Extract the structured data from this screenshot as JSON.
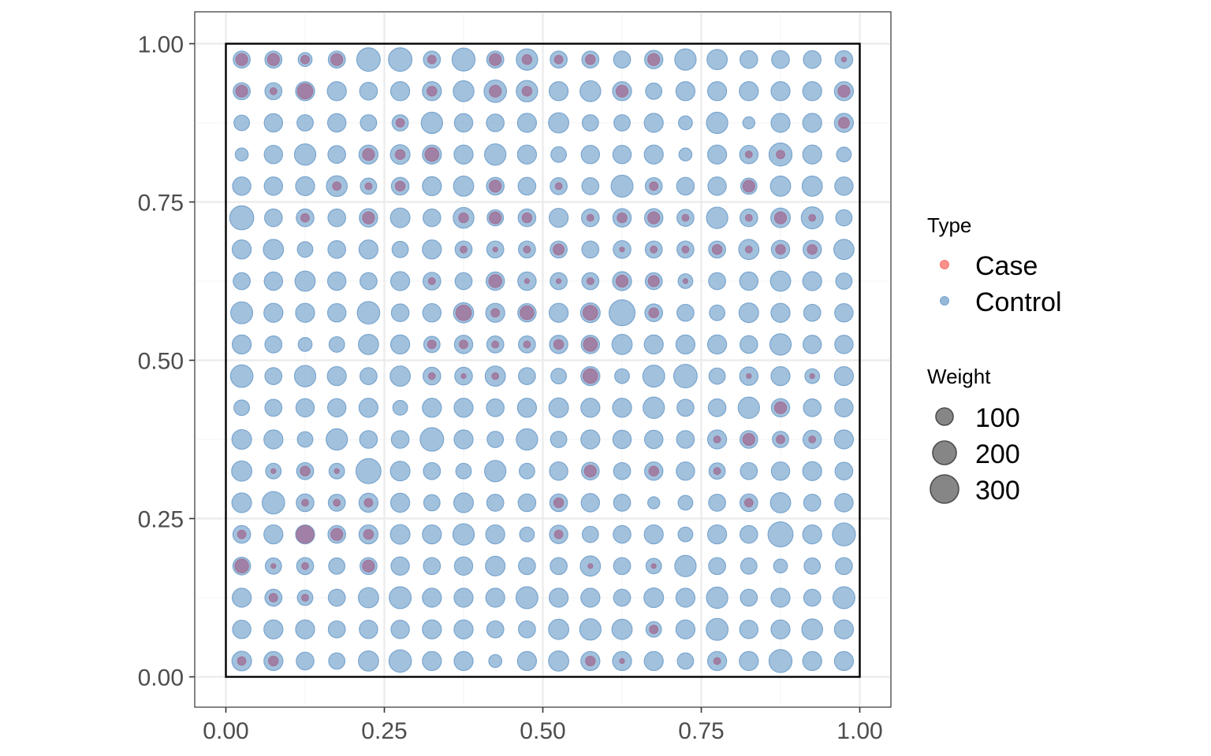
{
  "chart_data": {
    "type": "scatter",
    "title": "",
    "xlabel": "",
    "ylabel": "",
    "xlim": [
      0,
      1
    ],
    "ylim": [
      0,
      1
    ],
    "grid": true,
    "x_ticks": [
      "0.00",
      "0.25",
      "0.50",
      "0.75",
      "1.00"
    ],
    "y_ticks": [
      "0.00",
      "0.25",
      "0.50",
      "0.75",
      "1.00"
    ],
    "x_tick_values": [
      0,
      0.25,
      0.5,
      0.75,
      1
    ],
    "y_tick_values": [
      0,
      0.25,
      0.5,
      0.75,
      1
    ],
    "boundary_square": [
      0,
      0,
      1,
      1
    ],
    "grid_cell_centers": [
      0.025,
      0.075,
      0.125,
      0.175,
      0.225,
      0.275,
      0.325,
      0.375,
      0.425,
      0.475,
      0.525,
      0.575,
      0.625,
      0.675,
      0.725,
      0.775,
      0.825,
      0.875,
      0.925,
      0.975
    ],
    "control_weights_rows_top_to_bottom": [
      [
        120,
        120,
        80,
        120,
        230,
        230,
        120,
        220,
        120,
        190,
        120,
        120,
        120,
        140,
        190,
        170,
        130,
        130,
        130,
        130
      ],
      [
        120,
        120,
        150,
        150,
        130,
        150,
        150,
        180,
        210,
        190,
        150,
        180,
        150,
        110,
        150,
        150,
        150,
        150,
        150,
        150
      ],
      [
        100,
        140,
        110,
        140,
        110,
        110,
        190,
        140,
        130,
        150,
        170,
        110,
        110,
        150,
        80,
        190,
        60,
        150,
        150,
        150
      ],
      [
        70,
        140,
        190,
        130,
        150,
        160,
        150,
        150,
        190,
        150,
        100,
        140,
        140,
        150,
        70,
        150,
        140,
        220,
        150,
        90
      ],
      [
        140,
        140,
        150,
        180,
        110,
        130,
        150,
        170,
        130,
        130,
        120,
        120,
        200,
        120,
        130,
        140,
        110,
        170,
        170,
        140
      ],
      [
        240,
        130,
        130,
        130,
        140,
        160,
        130,
        180,
        110,
        130,
        150,
        130,
        140,
        140,
        120,
        190,
        130,
        160,
        200,
        110
      ],
      [
        150,
        170,
        100,
        130,
        150,
        110,
        150,
        120,
        120,
        120,
        120,
        120,
        130,
        120,
        120,
        120,
        170,
        140,
        140,
        170
      ],
      [
        120,
        140,
        170,
        140,
        120,
        150,
        130,
        120,
        140,
        140,
        120,
        120,
        150,
        120,
        90,
        120,
        140,
        170,
        150,
        110
      ],
      [
        200,
        150,
        150,
        140,
        210,
        130,
        140,
        170,
        150,
        140,
        150,
        160,
        280,
        130,
        120,
        100,
        160,
        150,
        120,
        140
      ],
      [
        150,
        120,
        80,
        100,
        170,
        150,
        110,
        140,
        120,
        120,
        140,
        140,
        170,
        150,
        150,
        150,
        130,
        190,
        140,
        140
      ],
      [
        210,
        120,
        190,
        150,
        120,
        170,
        130,
        130,
        170,
        120,
        100,
        150,
        90,
        200,
        230,
        110,
        140,
        150,
        90,
        150
      ],
      [
        100,
        120,
        140,
        140,
        150,
        90,
        150,
        150,
        130,
        150,
        160,
        150,
        150,
        190,
        120,
        130,
        190,
        140,
        130,
        140
      ],
      [
        160,
        150,
        100,
        190,
        130,
        130,
        230,
        150,
        110,
        190,
        110,
        150,
        140,
        140,
        130,
        150,
        130,
        110,
        140,
        150
      ],
      [
        170,
        100,
        120,
        100,
        260,
        160,
        120,
        100,
        190,
        100,
        140,
        130,
        120,
        140,
        140,
        110,
        120,
        140,
        150,
        130
      ],
      [
        160,
        210,
        130,
        120,
        150,
        150,
        110,
        160,
        120,
        130,
        130,
        140,
        120,
        60,
        90,
        120,
        130,
        170,
        120,
        140
      ],
      [
        130,
        150,
        150,
        130,
        150,
        160,
        150,
        190,
        150,
        90,
        140,
        110,
        130,
        150,
        90,
        150,
        130,
        260,
        150,
        220
      ],
      [
        130,
        110,
        120,
        110,
        120,
        140,
        120,
        140,
        160,
        120,
        120,
        170,
        120,
        100,
        190,
        120,
        110,
        80,
        110,
        120
      ],
      [
        150,
        120,
        100,
        120,
        170,
        200,
        150,
        150,
        150,
        200,
        150,
        150,
        120,
        160,
        150,
        190,
        120,
        150,
        120,
        200
      ],
      [
        140,
        150,
        150,
        120,
        140,
        140,
        150,
        150,
        120,
        120,
        170,
        190,
        170,
        100,
        150,
        200,
        140,
        150,
        180,
        150
      ],
      [
        160,
        150,
        130,
        110,
        170,
        210,
        150,
        150,
        70,
        150,
        170,
        150,
        150,
        150,
        110,
        150,
        150,
        220,
        150,
        150
      ]
    ],
    "case_weights_rows_top_to_bottom": [
      [
        60,
        60,
        30,
        60,
        0,
        0,
        30,
        0,
        60,
        40,
        30,
        40,
        0,
        60,
        0,
        0,
        0,
        0,
        0,
        10
      ],
      [
        60,
        20,
        100,
        0,
        0,
        0,
        40,
        0,
        60,
        40,
        0,
        0,
        60,
        0,
        0,
        0,
        0,
        0,
        0,
        60
      ],
      [
        0,
        0,
        0,
        0,
        0,
        30,
        0,
        0,
        0,
        0,
        0,
        0,
        0,
        0,
        0,
        0,
        0,
        0,
        0,
        50
      ],
      [
        0,
        0,
        0,
        0,
        60,
        40,
        80,
        0,
        0,
        0,
        0,
        0,
        0,
        0,
        0,
        0,
        20,
        30,
        0,
        0
      ],
      [
        0,
        0,
        0,
        30,
        20,
        40,
        0,
        0,
        60,
        0,
        20,
        0,
        0,
        30,
        0,
        0,
        60,
        0,
        0,
        0
      ],
      [
        0,
        0,
        30,
        0,
        60,
        0,
        0,
        40,
        60,
        40,
        0,
        20,
        40,
        60,
        20,
        0,
        20,
        60,
        20,
        0
      ],
      [
        0,
        0,
        0,
        0,
        0,
        0,
        0,
        20,
        10,
        20,
        50,
        0,
        10,
        20,
        20,
        40,
        20,
        40,
        40,
        0
      ],
      [
        0,
        0,
        0,
        0,
        0,
        0,
        20,
        0,
        70,
        10,
        10,
        20,
        60,
        50,
        10,
        0,
        0,
        0,
        0,
        0
      ],
      [
        0,
        0,
        0,
        0,
        0,
        0,
        0,
        100,
        30,
        80,
        0,
        90,
        0,
        40,
        0,
        0,
        0,
        0,
        0,
        0
      ],
      [
        0,
        0,
        0,
        0,
        0,
        0,
        30,
        30,
        20,
        20,
        40,
        80,
        0,
        0,
        0,
        0,
        0,
        0,
        0,
        0
      ],
      [
        0,
        0,
        0,
        0,
        0,
        0,
        20,
        10,
        20,
        0,
        0,
        90,
        0,
        0,
        0,
        0,
        10,
        0,
        10,
        0
      ],
      [
        0,
        0,
        0,
        0,
        0,
        0,
        0,
        0,
        0,
        0,
        0,
        0,
        0,
        0,
        0,
        0,
        0,
        60,
        0,
        0
      ],
      [
        0,
        0,
        0,
        0,
        0,
        0,
        0,
        0,
        0,
        0,
        0,
        0,
        0,
        0,
        0,
        20,
        60,
        30,
        20,
        0
      ],
      [
        0,
        10,
        40,
        10,
        0,
        0,
        0,
        0,
        0,
        0,
        0,
        60,
        0,
        40,
        0,
        20,
        0,
        0,
        0,
        0
      ],
      [
        0,
        0,
        20,
        20,
        30,
        0,
        0,
        0,
        0,
        0,
        40,
        0,
        0,
        0,
        0,
        0,
        30,
        0,
        0,
        0
      ],
      [
        30,
        0,
        130,
        60,
        40,
        0,
        0,
        0,
        0,
        0,
        30,
        0,
        0,
        0,
        0,
        0,
        0,
        0,
        0,
        0
      ],
      [
        80,
        10,
        20,
        0,
        60,
        0,
        0,
        0,
        0,
        0,
        0,
        10,
        0,
        10,
        0,
        0,
        0,
        0,
        0,
        0
      ],
      [
        0,
        30,
        20,
        0,
        0,
        0,
        0,
        0,
        0,
        0,
        0,
        0,
        0,
        0,
        0,
        0,
        0,
        0,
        0,
        0
      ],
      [
        0,
        0,
        0,
        0,
        0,
        0,
        0,
        0,
        0,
        0,
        0,
        0,
        0,
        30,
        0,
        0,
        0,
        0,
        0,
        0
      ],
      [
        30,
        40,
        0,
        0,
        0,
        0,
        0,
        0,
        0,
        0,
        0,
        40,
        10,
        0,
        0,
        20,
        0,
        0,
        0,
        0
      ]
    ],
    "size_scale_reference": [
      100,
      200,
      300
    ],
    "colors": {
      "case": "#f8766d",
      "control": "#7aa6cf",
      "overlap": "#a0749a",
      "weight_legend_fill": "#7f7f7f",
      "weight_legend_stroke": "#4d4d4d",
      "grid_major": "#ebebeb",
      "grid_minor": "#f5f5f5",
      "panel_border": "#333333",
      "square": "#000000"
    },
    "legend": {
      "placement": "right",
      "type_title": "Type",
      "type_entries": [
        "Case",
        "Control"
      ],
      "weight_title": "Weight",
      "weight_entries": [
        "100",
        "200",
        "300"
      ]
    }
  }
}
